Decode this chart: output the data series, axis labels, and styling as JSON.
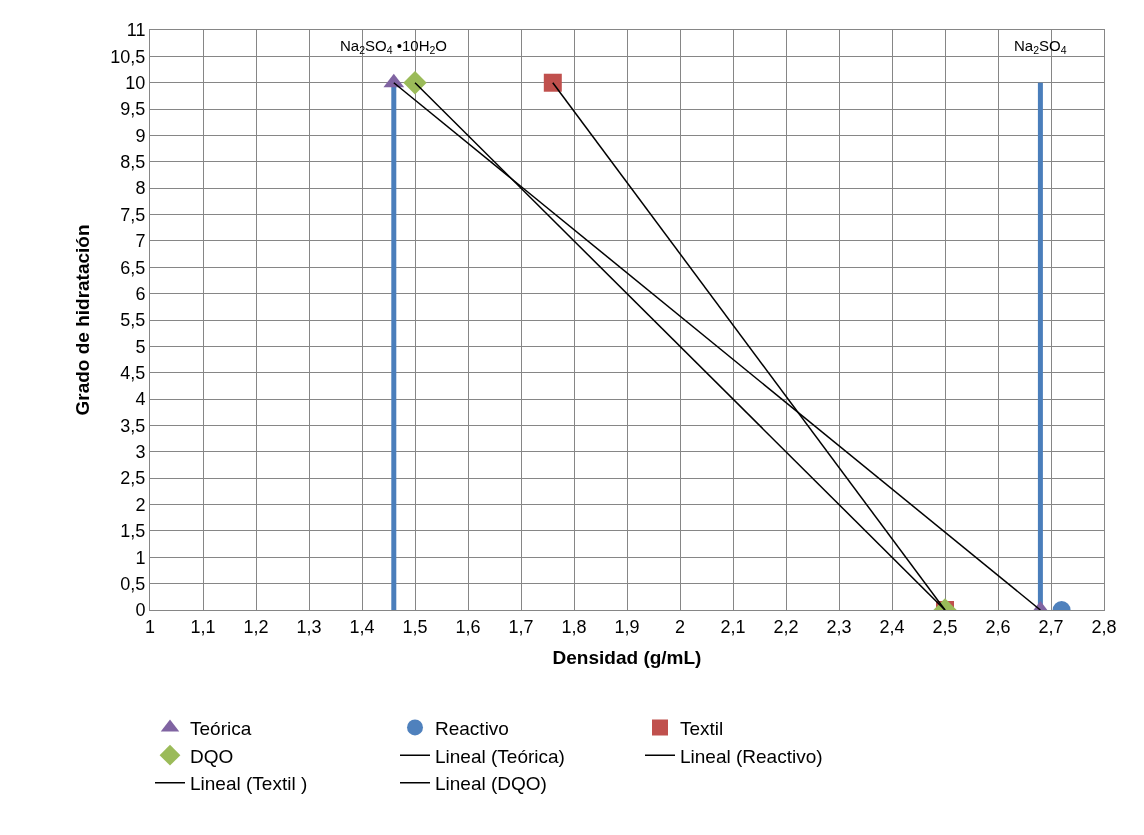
{
  "chart_data": {
    "type": "scatter",
    "xlabel": "Densidad (g/mL)",
    "ylabel": "Grado de hidratación",
    "xlim": [
      1,
      2.8
    ],
    "ylim": [
      0,
      11
    ],
    "xticks": [
      1,
      {
        "value": 1.1,
        "label": "1,1"
      },
      {
        "value": 1.2,
        "label": "1,2"
      },
      {
        "value": 1.3,
        "label": "1,3"
      },
      {
        "value": 1.4,
        "label": "1,4"
      },
      {
        "value": 1.5,
        "label": "1,5"
      },
      {
        "value": 1.6,
        "label": "1,6"
      },
      {
        "value": 1.7,
        "label": "1,7"
      },
      {
        "value": 1.8,
        "label": "1,8"
      },
      {
        "value": 1.9,
        "label": "1,9"
      },
      2,
      {
        "value": 2.1,
        "label": "2,1"
      },
      {
        "value": 2.2,
        "label": "2,2"
      },
      {
        "value": 2.3,
        "label": "2,3"
      },
      {
        "value": 2.4,
        "label": "2,4"
      },
      {
        "value": 2.5,
        "label": "2,5"
      },
      {
        "value": 2.6,
        "label": "2,6"
      },
      {
        "value": 2.7,
        "label": "2,7"
      },
      {
        "value": 2.8,
        "label": "2,8"
      }
    ],
    "yticks": [
      0,
      {
        "value": 0.5,
        "label": "0,5"
      },
      1,
      {
        "value": 1.5,
        "label": "1,5"
      },
      2,
      {
        "value": 2.5,
        "label": "2,5"
      },
      3,
      {
        "value": 3.5,
        "label": "3,5"
      },
      4,
      {
        "value": 4.5,
        "label": "4,5"
      },
      5,
      {
        "value": 5.5,
        "label": "5,5"
      },
      6,
      {
        "value": 6.5,
        "label": "6,5"
      },
      7,
      {
        "value": 7.5,
        "label": "7,5"
      },
      8,
      {
        "value": 8.5,
        "label": "8,5"
      },
      9,
      {
        "value": 9.5,
        "label": "9,5"
      },
      10,
      {
        "value": 10.5,
        "label": "10,5"
      },
      11
    ],
    "grid": true,
    "legend": "bottom",
    "annotations": [
      "Na$_{2}$SO$_{4}$ •10H$_{2}$O",
      "Na$_{2}$SO$_{4}$"
    ],
    "series": [
      {
        "type": "line",
        "color": "#4a7ebb",
        "x": [
          1.46,
          1.46
        ],
        "values": [
          0,
          10
        ]
      },
      {
        "type": "line",
        "color": "#4a7ebb",
        "x": [
          2.68,
          2.68
        ],
        "values": [
          0,
          10
        ]
      },
      {
        "name": "Teórica",
        "color": "#8064a2",
        "marker": "triangle",
        "x": [
          1.46,
          2.68
        ],
        "values": [
          10,
          0
        ]
      },
      {
        "name": "Reactivo",
        "color": "#4f81bd",
        "marker": "circle",
        "x": [
          2.72
        ],
        "values": [
          0
        ]
      },
      {
        "name": "Textil",
        "color": "#c0504d",
        "marker": "square",
        "x": [
          1.76,
          2.5
        ],
        "values": [
          10,
          0
        ]
      },
      {
        "name": "DQO",
        "color": "#9bbb59",
        "marker": "diamond",
        "x": [
          1.5,
          2.5
        ],
        "values": [
          10,
          0
        ]
      },
      {
        "type": "line",
        "name": "Lineal (Teórica)",
        "color": "#000000",
        "x": [
          1.46,
          2.68
        ],
        "values": [
          10,
          0
        ]
      },
      {
        "type": "line",
        "name": "Lineal (Reactivo)",
        "color": "#000000"
      },
      {
        "type": "line",
        "name": "Lineal (Textil )",
        "color": "#000000",
        "x": [
          1.76,
          2.5
        ],
        "values": [
          10,
          0
        ]
      },
      {
        "type": "line",
        "name": "Lineal (DQO)",
        "color": "#000000",
        "x": [
          1.5,
          2.5
        ],
        "values": [
          10,
          0
        ]
      }
    ]
  }
}
